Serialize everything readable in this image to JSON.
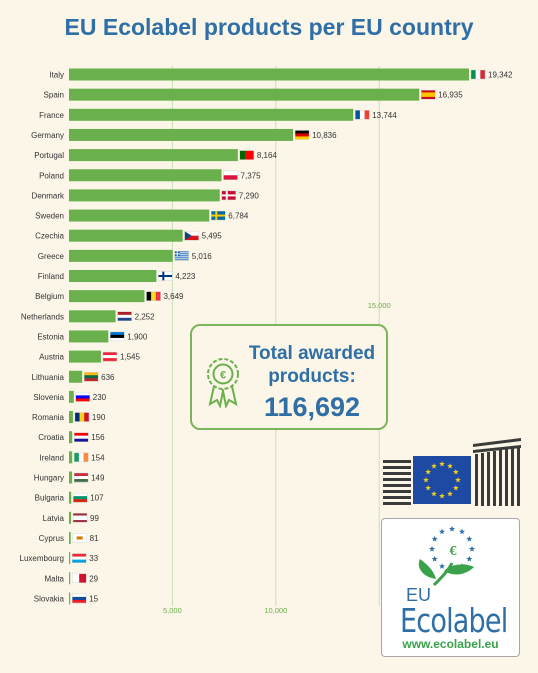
{
  "title": "EU Ecolabel products per EU country",
  "colors": {
    "bar": "#6ab04c",
    "title": "#2f6fa6",
    "grid": "#c7e0b8",
    "background": "#fbf6e8"
  },
  "chart_data": {
    "type": "bar",
    "orientation": "horizontal",
    "title": "EU Ecolabel products per EU country",
    "categories": [
      "Italy",
      "Spain",
      "France",
      "Germany",
      "Portugal",
      "Poland",
      "Denmark",
      "Sweden",
      "Czechia",
      "Greece",
      "Finland",
      "Belgium",
      "Netherlands",
      "Estonia",
      "Austria",
      "Lithuania",
      "Slovenia",
      "Romania",
      "Croatia",
      "Ireland",
      "Hungary",
      "Bulgaria",
      "Latvia",
      "Cyprus",
      "Luxembourg",
      "Malta",
      "Slovakia"
    ],
    "values": [
      19342,
      16935,
      13744,
      10836,
      8164,
      7375,
      7290,
      6784,
      5495,
      5016,
      4223,
      3649,
      2252,
      1900,
      1545,
      636,
      230,
      190,
      156,
      154,
      149,
      107,
      99,
      81,
      33,
      29,
      15
    ],
    "value_labels": [
      "19,342",
      "16,935",
      "13,744",
      "10,836",
      "8,164",
      "7,375",
      "7,290",
      "6,784",
      "5,495",
      "5,016",
      "4,223",
      "3,649",
      "2,252",
      "1,900",
      "1,545",
      "636",
      "230",
      "190",
      "156",
      "154",
      "149",
      "107",
      "99",
      "81",
      "33",
      "29",
      "15"
    ],
    "flags": [
      "italy-flag",
      "spain-flag",
      "france-flag",
      "germany-flag",
      "portugal-flag",
      "poland-flag",
      "denmark-flag",
      "sweden-flag",
      "czechia-flag",
      "greece-flag",
      "finland-flag",
      "belgium-flag",
      "netherlands-flag",
      "estonia-flag",
      "austria-flag",
      "lithuania-flag",
      "slovenia-flag",
      "romania-flag",
      "croatia-flag",
      "ireland-flag",
      "hungary-flag",
      "bulgaria-flag",
      "latvia-flag",
      "cyprus-flag",
      "luxembourg-flag",
      "malta-flag",
      "slovakia-flag"
    ],
    "gridlines": [
      {
        "value": 5000,
        "label": "5,000",
        "label_position": "bottom"
      },
      {
        "value": 10000,
        "label": "10,000",
        "label_position": "bottom"
      },
      {
        "value": 15000,
        "label": "15,000",
        "label_position": "middle"
      }
    ],
    "xlim": [
      0,
      19342
    ]
  },
  "total": {
    "label": "Total awarded products:",
    "value": "116,692",
    "icon": "award-medal-icon"
  },
  "ecolabel": {
    "eu": "EU",
    "word": "Ecolabel",
    "url": "www.ecolabel.eu",
    "icon": "eu-ecolabel-flower-icon"
  },
  "ec_logo": {
    "icon": "european-commission-logo"
  }
}
